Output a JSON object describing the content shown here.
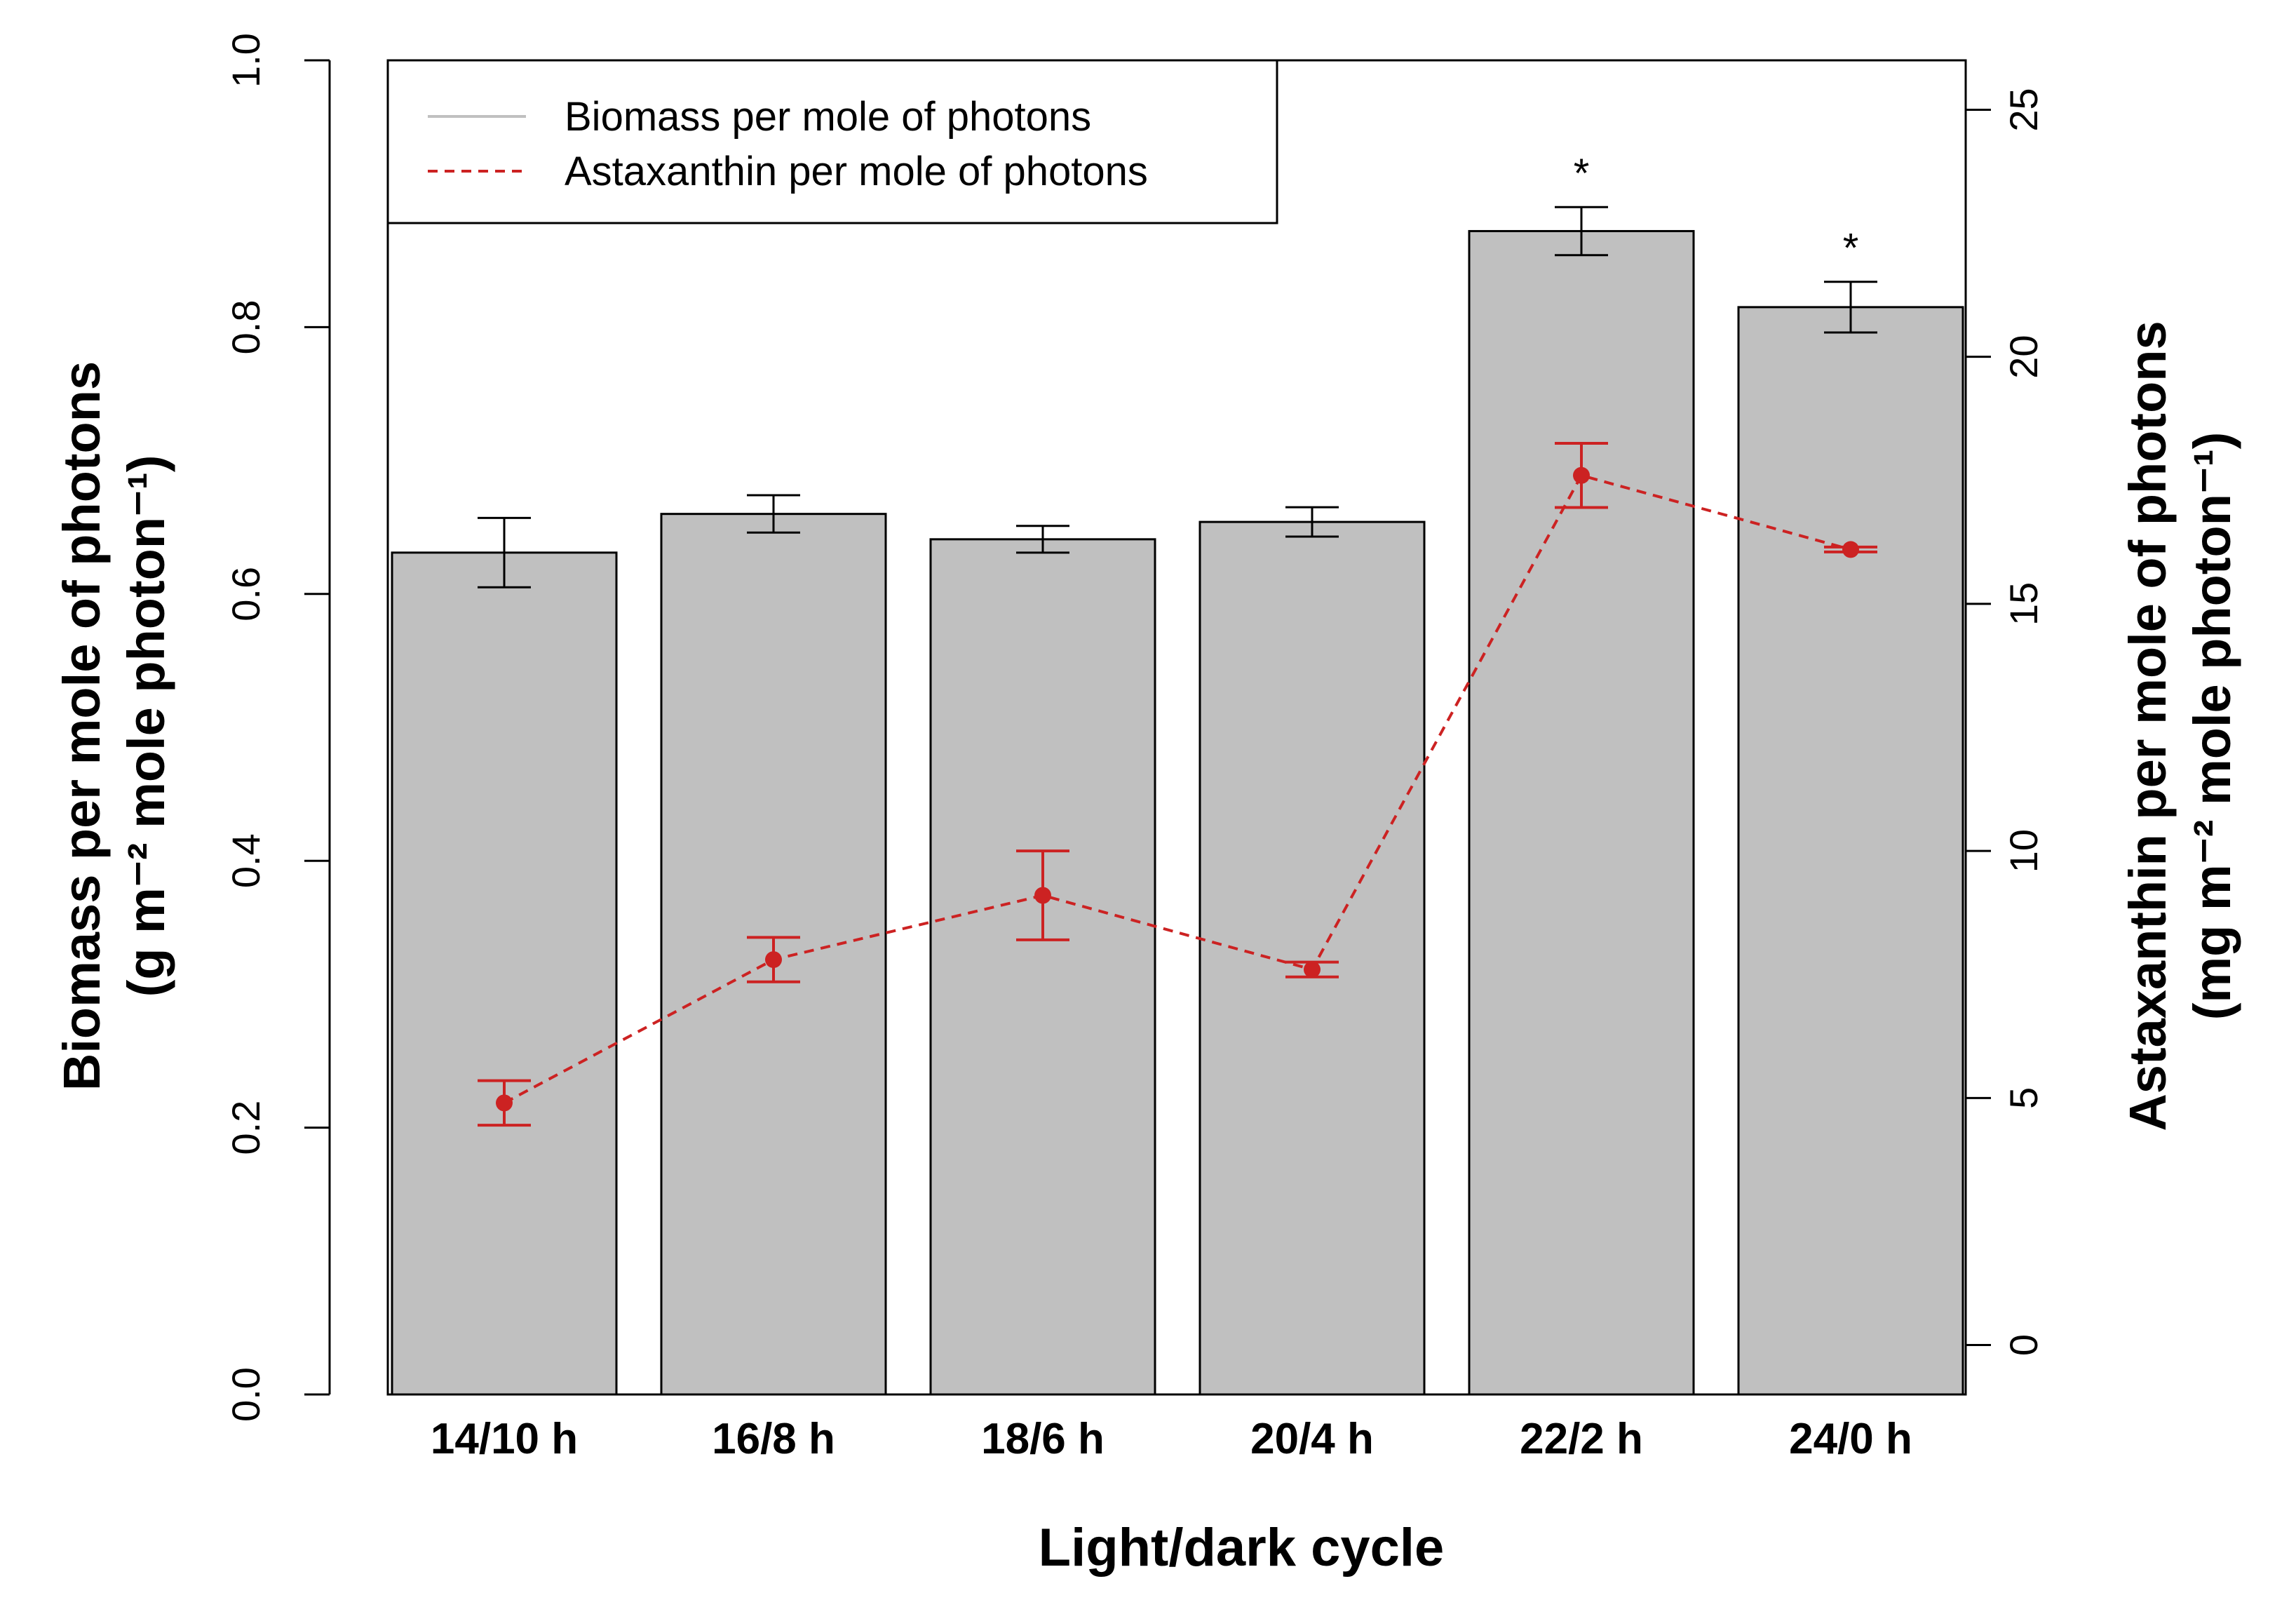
{
  "chart_data": {
    "type": "bar",
    "categories": [
      "14/10 h",
      "16/8 h",
      "18/6 h",
      "20/4 h",
      "22/2 h",
      "24/0 h"
    ],
    "xlabel": "Light/dark cycle",
    "ylabel_line1": "Biomass per mole of photons",
    "ylabel_line2": "(g m⁻² mole photon⁻¹)",
    "ylabel_right_line1": "Astaxanthin per mole of photons",
    "ylabel_right_line2": "(mg m⁻² mole photon⁻¹)",
    "ylim": [
      0,
      1.0
    ],
    "yticks": [
      "0.0",
      "0.2",
      "0.4",
      "0.6",
      "0.8",
      "1.0"
    ],
    "ylim_right": [
      -1,
      26
    ],
    "yticks_right": [
      "0",
      "5",
      "10",
      "15",
      "20",
      "25"
    ],
    "significance_marker": "*",
    "series": [
      {
        "name": "Biomass per mole of photons",
        "kind": "bar",
        "axis": "left",
        "color": "#c0c0c0",
        "values": [
          0.631,
          0.66,
          0.641,
          0.654,
          0.872,
          0.815
        ],
        "errors": [
          0.026,
          0.014,
          0.01,
          0.011,
          0.018,
          0.019
        ],
        "significant": [
          false,
          false,
          false,
          false,
          true,
          true
        ]
      },
      {
        "name": "Astaxanthin per mole of photons",
        "kind": "line",
        "axis": "right",
        "color": "#cc2222",
        "values": [
          4.9,
          7.8,
          9.1,
          7.6,
          17.6,
          16.1
        ],
        "errors": [
          0.45,
          0.45,
          0.9,
          0.15,
          0.65,
          0.05
        ]
      }
    ]
  }
}
